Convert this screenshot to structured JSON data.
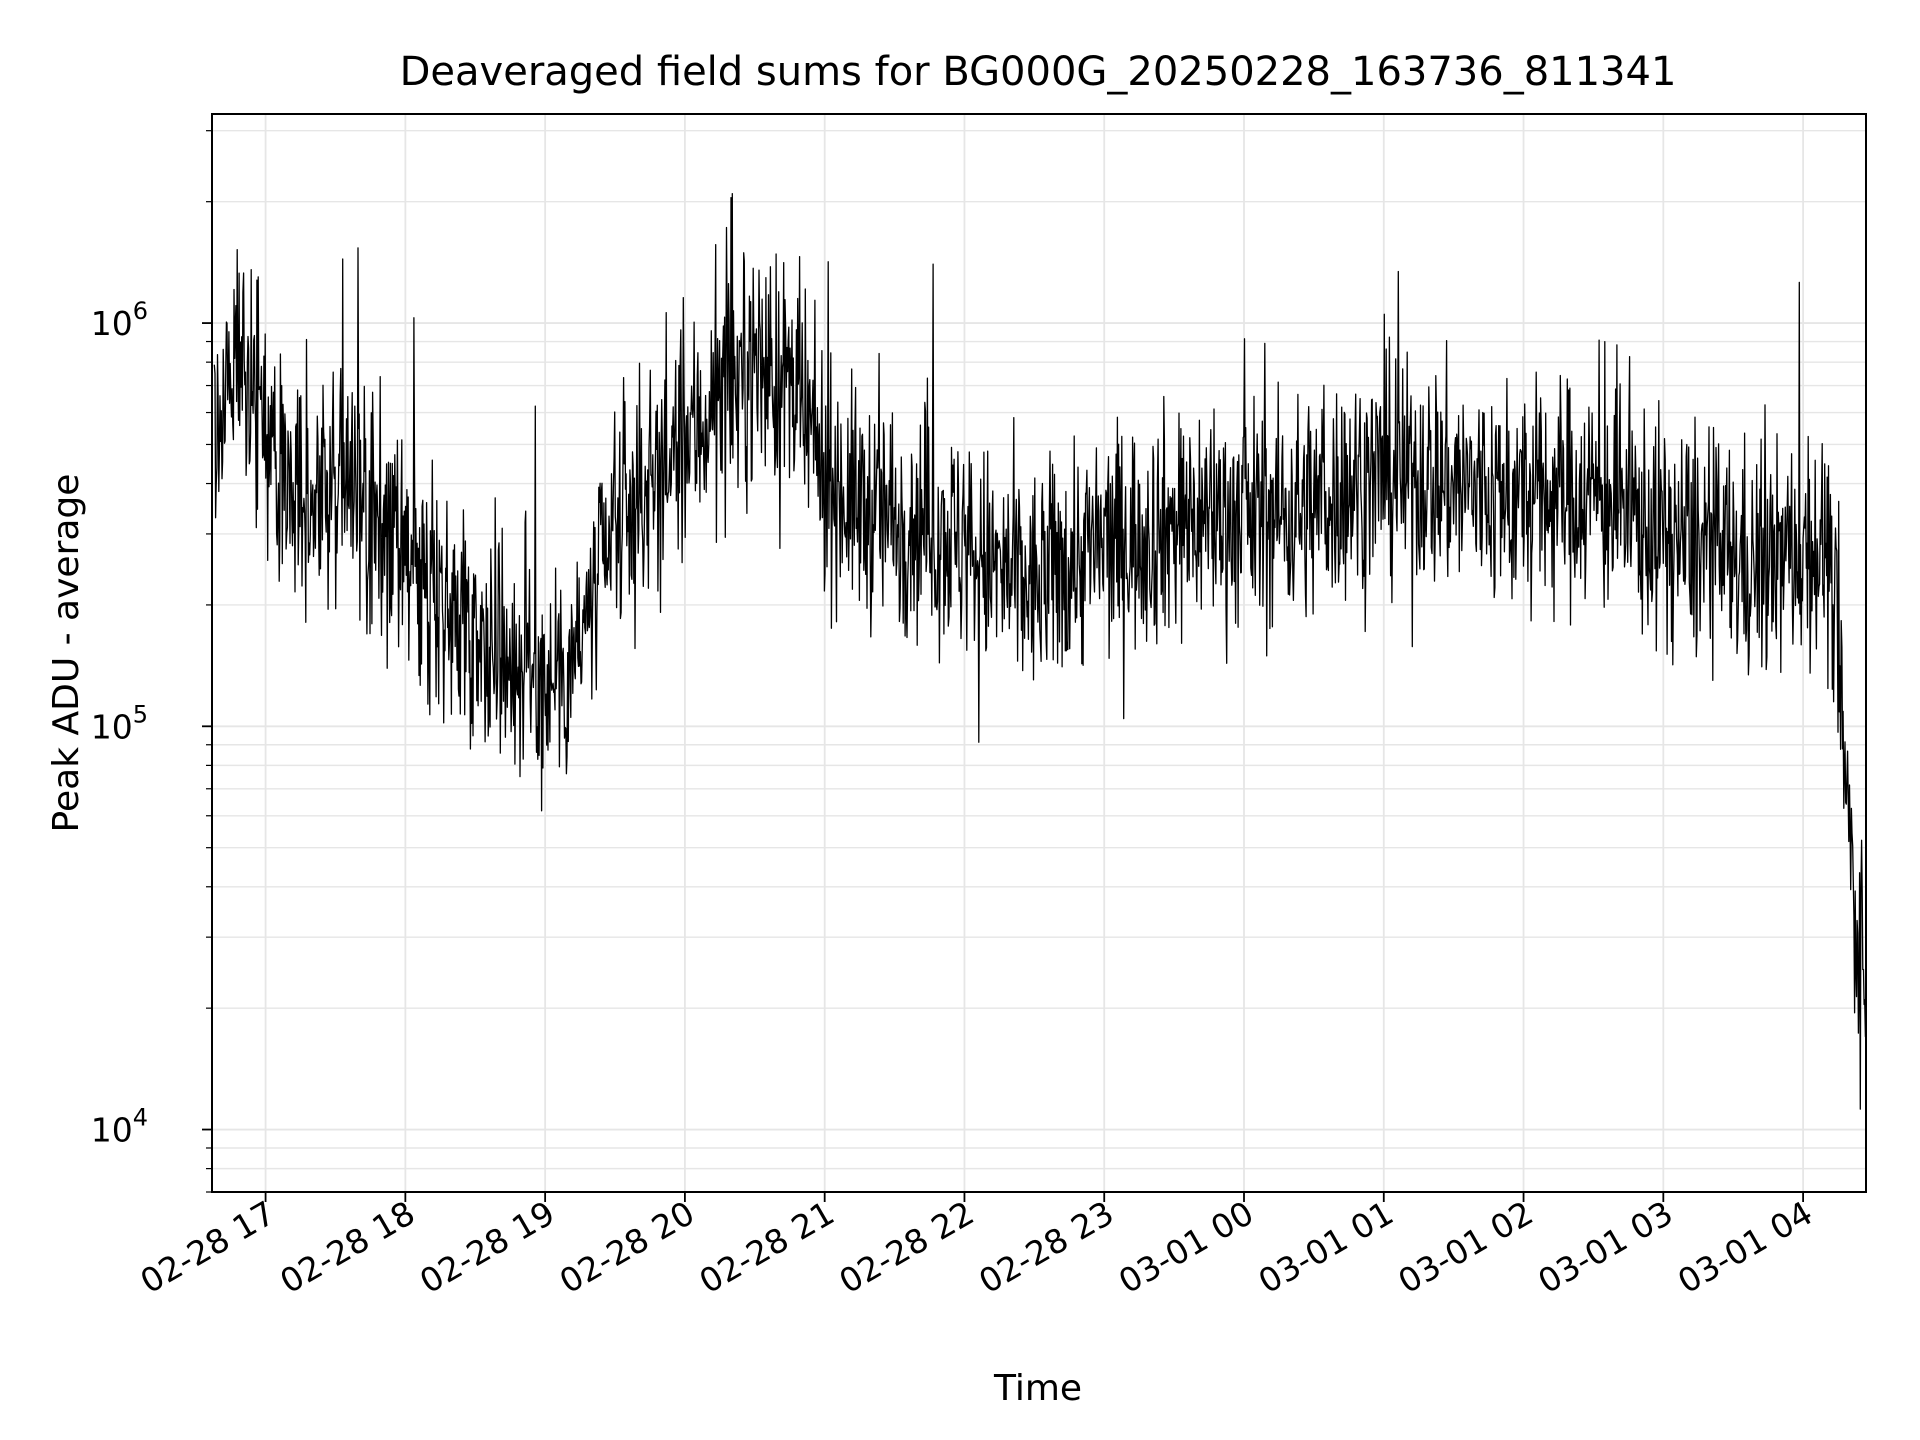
{
  "chart_data": {
    "type": "line",
    "title": "Deaveraged field sums for BG000G_20250228_163736_811341",
    "xlabel": "Time",
    "ylabel": "Peak ADU - average",
    "yscale": "log",
    "xlim": [
      "2025-02-28 16:37",
      "2025-03-01 04:27"
    ],
    "ylim": [
      7000,
      3300000
    ],
    "grid": true,
    "legend": "none",
    "line_color": "#000000",
    "x_ticks": [
      "02-28 17",
      "02-28 18",
      "02-28 19",
      "02-28 20",
      "02-28 21",
      "02-28 22",
      "02-28 23",
      "03-01 00",
      "03-01 01",
      "03-01 02",
      "03-01 03",
      "03-01 04"
    ],
    "y_ticks": [
      {
        "value": 10000,
        "base": "10",
        "exp": "4"
      },
      {
        "value": 100000,
        "base": "10",
        "exp": "5"
      },
      {
        "value": 1000000,
        "base": "10",
        "exp": "6"
      }
    ],
    "series": [
      {
        "x": [
          "2025-02-28 16:38",
          "2025-02-28 16:45",
          "2025-02-28 16:50",
          "2025-02-28 16:55",
          "2025-02-28 17:00",
          "2025-02-28 17:10",
          "2025-02-28 17:20",
          "2025-02-28 17:30",
          "2025-02-28 17:45",
          "2025-02-28 18:00",
          "2025-02-28 18:15",
          "2025-02-28 18:30",
          "2025-02-28 18:45",
          "2025-02-28 19:00",
          "2025-02-28 19:15",
          "2025-02-28 19:30",
          "2025-02-28 19:45",
          "2025-02-28 20:00",
          "2025-02-28 20:15",
          "2025-02-28 20:30",
          "2025-02-28 20:45",
          "2025-02-28 21:00",
          "2025-02-28 21:15",
          "2025-02-28 21:30",
          "2025-02-28 21:45",
          "2025-02-28 22:00",
          "2025-02-28 22:15",
          "2025-02-28 22:30",
          "2025-02-28 22:45",
          "2025-02-28 23:00",
          "2025-02-28 23:15",
          "2025-02-28 23:30",
          "2025-02-28 23:45",
          "2025-03-01 00:00",
          "2025-03-01 00:15",
          "2025-03-01 00:30",
          "2025-03-01 00:45",
          "2025-03-01 01:00",
          "2025-03-01 01:15",
          "2025-03-01 01:30",
          "2025-03-01 01:45",
          "2025-03-01 02:00",
          "2025-03-01 02:15",
          "2025-03-01 02:30",
          "2025-03-01 02:45",
          "2025-03-01 03:00",
          "2025-03-01 03:15",
          "2025-03-01 03:30",
          "2025-03-01 03:45",
          "2025-03-01 04:00",
          "2025-03-01 04:10",
          "2025-03-01 04:15",
          "2025-03-01 04:20",
          "2025-03-01 04:25",
          "2025-03-01 04:27"
        ],
        "y": [
          600000,
          700000,
          900000,
          700000,
          500000,
          400000,
          380000,
          400000,
          350000,
          250000,
          200000,
          180000,
          150000,
          130000,
          160000,
          300000,
          400000,
          500000,
          650000,
          800000,
          700000,
          420000,
          350000,
          330000,
          320000,
          280000,
          240000,
          220000,
          260000,
          280000,
          300000,
          320000,
          340000,
          330000,
          340000,
          350000,
          400000,
          420000,
          420000,
          400000,
          380000,
          360000,
          380000,
          380000,
          340000,
          300000,
          280000,
          260000,
          250000,
          280000,
          280000,
          150000,
          50000,
          25000,
          20000
        ]
      }
    ]
  }
}
